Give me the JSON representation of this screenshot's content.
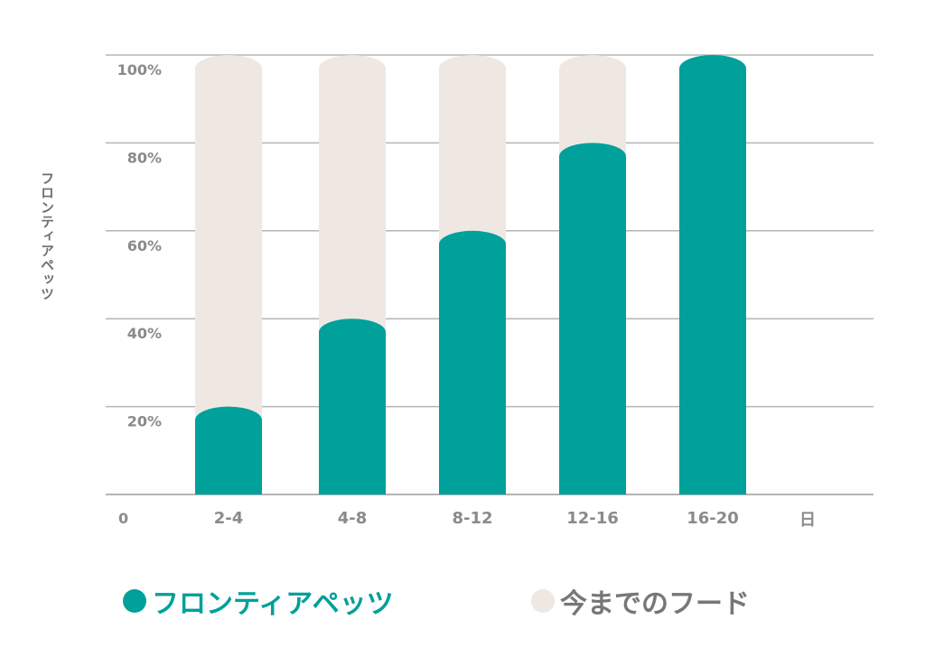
{
  "chart_data": {
    "type": "bar",
    "categories": [
      "2-4",
      "4-8",
      "8-12",
      "12-16",
      "16-20"
    ],
    "series": [
      {
        "name": "フロンティアペッツ",
        "values": [
          20,
          40,
          60,
          80,
          100
        ],
        "color": "#00a09b"
      },
      {
        "name": "今までのフード",
        "values": [
          100,
          100,
          100,
          100,
          0
        ],
        "color": "#efe8e2"
      }
    ],
    "ylim": [
      0,
      100
    ],
    "yticks": [
      "0",
      "20%",
      "40%",
      "60%",
      "80%",
      "100%"
    ],
    "ylabel": "フロンティアペッツ",
    "xlabel": "日",
    "grid": true,
    "legend_placement": "bottom",
    "colors": {
      "grid": "#b5b5b5",
      "tick_text": "#8a8a8a",
      "ylabel_text": "#6e6e6e",
      "legend_text_1": "#777777"
    }
  }
}
